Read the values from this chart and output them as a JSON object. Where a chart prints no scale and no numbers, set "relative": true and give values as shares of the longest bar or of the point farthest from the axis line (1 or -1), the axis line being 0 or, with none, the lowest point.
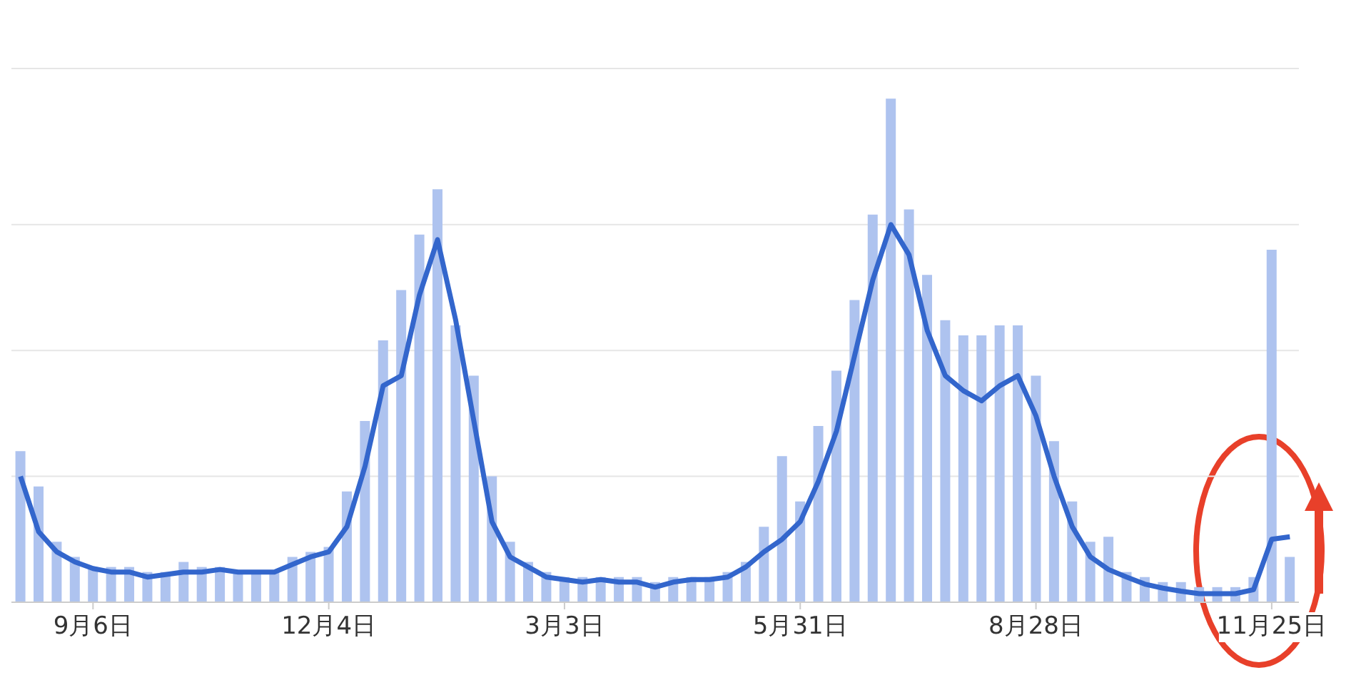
{
  "chart_data": {
    "type": "bar",
    "relative": true,
    "grid": "y",
    "legend": false,
    "categories": [
      null,
      null,
      null,
      null,
      "9月6日",
      null,
      null,
      null,
      null,
      null,
      null,
      null,
      null,
      null,
      null,
      null,
      null,
      "12月4日",
      null,
      null,
      null,
      null,
      null,
      null,
      null,
      null,
      null,
      null,
      null,
      null,
      "3月3日",
      null,
      null,
      null,
      null,
      null,
      null,
      null,
      null,
      null,
      null,
      null,
      null,
      "5月31日",
      null,
      null,
      null,
      null,
      null,
      null,
      null,
      null,
      null,
      null,
      null,
      null,
      "8月28日",
      null,
      null,
      null,
      null,
      null,
      null,
      null,
      null,
      null,
      null,
      null,
      null,
      "11月25日",
      null
    ],
    "series": [
      {
        "color": "#aec3ef",
        "values": [
          0.3,
          0.23,
          0.12,
          0.09,
          0.07,
          0.07,
          0.07,
          0.06,
          0.06,
          0.08,
          0.07,
          0.07,
          0.06,
          0.06,
          0.06,
          0.09,
          0.1,
          0.11,
          0.22,
          0.36,
          0.52,
          0.62,
          0.73,
          0.82,
          0.55,
          0.45,
          0.25,
          0.12,
          0.08,
          0.06,
          0.05,
          0.05,
          0.05,
          0.05,
          0.05,
          0.04,
          0.05,
          0.05,
          0.05,
          0.06,
          0.08,
          0.15,
          0.29,
          0.2,
          0.35,
          0.46,
          0.6,
          0.77,
          1,
          0.78,
          0.65,
          0.56,
          0.53,
          0.53,
          0.55,
          0.55,
          0.45,
          0.32,
          0.2,
          0.12,
          0.13,
          0.06,
          0.05,
          0.04,
          0.04,
          0.03,
          0.03,
          0.03,
          0.05,
          0.7,
          0.09
        ]
      },
      {
        "type": "line",
        "color": "#3366cc",
        "values": [
          0.25,
          0.14,
          0.1,
          0.08,
          0.067,
          0.06,
          0.06,
          0.05,
          0.055,
          0.06,
          0.06,
          0.065,
          0.06,
          0.06,
          0.06,
          0.075,
          0.09,
          0.1,
          0.15,
          0.27,
          0.43,
          0.45,
          0.61,
          0.72,
          0.56,
          0.36,
          0.16,
          0.09,
          0.07,
          0.05,
          0.045,
          0.04,
          0.045,
          0.04,
          0.04,
          0.03,
          0.04,
          0.045,
          0.045,
          0.05,
          0.07,
          0.1,
          0.125,
          0.16,
          0.24,
          0.34,
          0.49,
          0.64,
          0.75,
          0.69,
          0.54,
          0.45,
          0.42,
          0.4,
          0.43,
          0.45,
          0.37,
          0.25,
          0.15,
          0.09,
          0.065,
          0.05,
          0.036,
          0.028,
          0.022,
          0.017,
          0.017,
          0.017,
          0.025,
          0.125,
          0.13
        ]
      }
    ]
  }
}
